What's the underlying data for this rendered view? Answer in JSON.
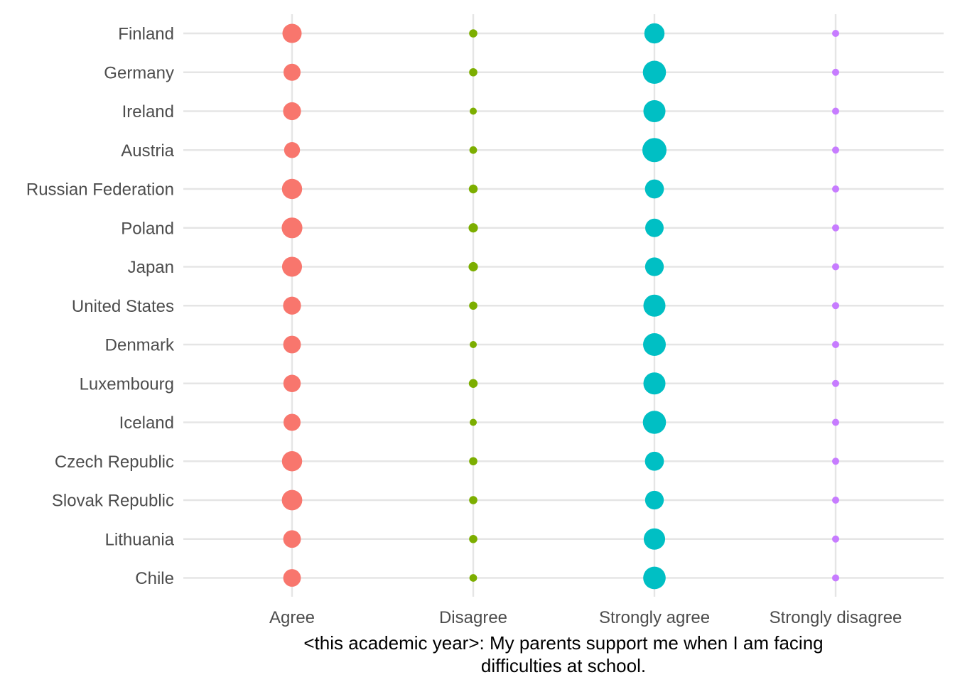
{
  "chart_data": {
    "type": "scatter",
    "subtype": "categorical dot plot (bubble size = proportion)",
    "xlabel": "<this academic year>: My parents support me when I am facing difficulties at school.",
    "ylabel": "",
    "x_categories": [
      "Agree",
      "Disagree",
      "Strongly agree",
      "Strongly disagree"
    ],
    "y_categories": [
      "Finland",
      "Germany",
      "Ireland",
      "Austria",
      "Russian Federation",
      "Poland",
      "Japan",
      "United States",
      "Denmark",
      "Luxembourg",
      "Iceland",
      "Czech Republic",
      "Slovak Republic",
      "Lithuania",
      "Chile"
    ],
    "series": [
      {
        "name": "Agree",
        "color": "#F8766D",
        "values": [
          0.38,
          0.3,
          0.33,
          0.26,
          0.42,
          0.44,
          0.41,
          0.33,
          0.32,
          0.31,
          0.3,
          0.42,
          0.43,
          0.32,
          0.32
        ]
      },
      {
        "name": "Disagree",
        "color": "#7CAE00",
        "values": [
          0.07,
          0.07,
          0.05,
          0.06,
          0.08,
          0.09,
          0.09,
          0.07,
          0.05,
          0.08,
          0.05,
          0.07,
          0.07,
          0.07,
          0.06
        ]
      },
      {
        "name": "Strongly agree",
        "color": "#00BFC4",
        "values": [
          0.42,
          0.55,
          0.5,
          0.6,
          0.37,
          0.35,
          0.36,
          0.5,
          0.53,
          0.5,
          0.55,
          0.37,
          0.36,
          0.47,
          0.52
        ]
      },
      {
        "name": "Strongly disagree",
        "color": "#C77CFF",
        "values": [
          0.02,
          0.03,
          0.03,
          0.03,
          0.03,
          0.03,
          0.03,
          0.03,
          0.03,
          0.03,
          0.03,
          0.03,
          0.04,
          0.04,
          0.05
        ]
      }
    ],
    "legend": "none",
    "grid": true
  }
}
